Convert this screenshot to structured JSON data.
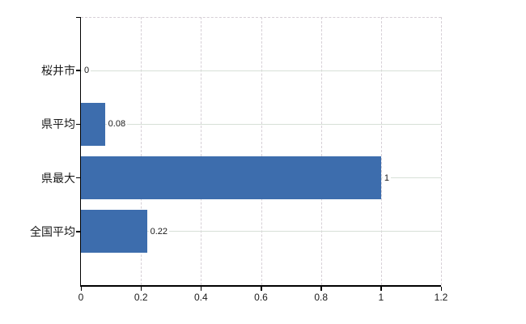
{
  "chart_data": {
    "type": "bar",
    "orientation": "horizontal",
    "title": "",
    "categories": [
      "桜井市",
      "県平均",
      "県最大",
      "全国平均"
    ],
    "values": [
      0,
      0.08,
      1,
      0.22
    ],
    "value_labels": [
      "0",
      "0.08",
      "1",
      "0.22"
    ],
    "xlim": [
      0,
      1.2
    ],
    "x_tick_values": [
      0,
      0.2,
      0.4,
      0.6,
      0.8,
      1,
      1.2
    ],
    "x_tick_labels": [
      "0",
      "0.2",
      "0.4",
      "0.6",
      "0.8",
      "1",
      "1.2"
    ],
    "grid": true,
    "legend": false,
    "gridline_style": {
      "horizontal": "solid",
      "vertical": "dashed"
    },
    "colors": {
      "bar": "#3d6dad",
      "axis": "#000000",
      "h_gridline": "#d7e0d7",
      "v_gridline": "#d6cfd6",
      "text": "#1a1a1a",
      "background": "#ffffff"
    }
  }
}
